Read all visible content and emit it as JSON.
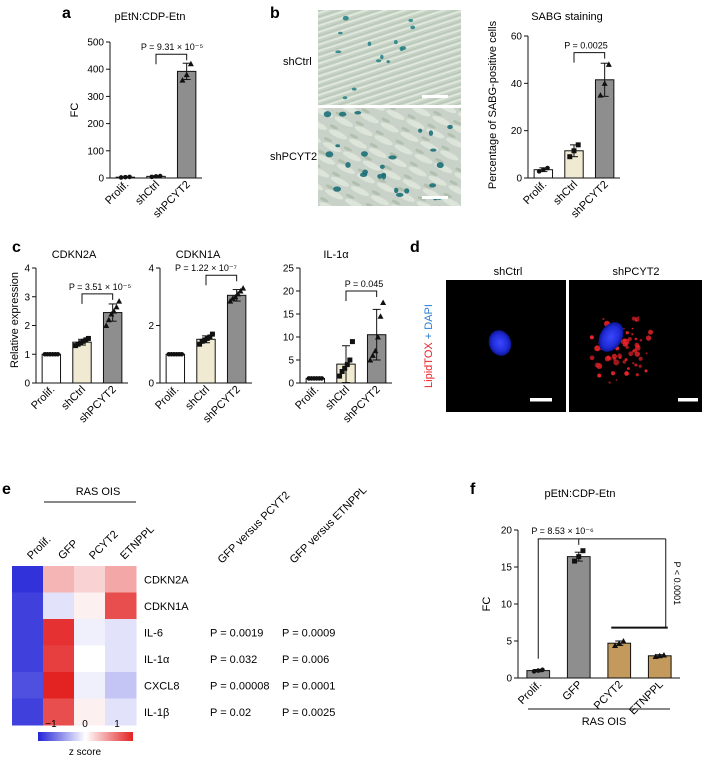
{
  "panels": {
    "a": {
      "letter": "a",
      "chart_data": {
        "type": "bar",
        "title": "pEtN:CDP-Etn",
        "ylabel": "FC",
        "categories": [
          "Prolif.",
          "shCtrl",
          "shPCYT2"
        ],
        "values": [
          3,
          6,
          392
        ],
        "errors": [
          1,
          2,
          30
        ],
        "points": [
          [
            2,
            3,
            4
          ],
          [
            4,
            6,
            7
          ],
          [
            360,
            380,
            420
          ]
        ],
        "ylim": [
          0,
          500
        ],
        "yticks": [
          0,
          100,
          200,
          300,
          400,
          500
        ],
        "bar_colors": [
          "#ffffff",
          "#f1ead2",
          "#8e8e8e"
        ],
        "annotations": [
          {
            "text": "P = 9.31 × 10⁻⁵",
            "from": 1,
            "to": 2
          }
        ]
      }
    },
    "b": {
      "letter": "b",
      "image_labels": [
        "shCtrl",
        "shPCYT2"
      ],
      "chart_data": {
        "type": "bar",
        "title": "SABG staining",
        "ylabel": "Percentage of SABG-positive cells",
        "categories": [
          "Prolif.",
          "shCtrl",
          "shPCYT2"
        ],
        "values": [
          3.5,
          11.5,
          41.5
        ],
        "errors": [
          0.8,
          2.5,
          7
        ],
        "points": [
          [
            2.8,
            3.5,
            4.2
          ],
          [
            9,
            11.5,
            14
          ],
          [
            35,
            40,
            48
          ]
        ],
        "ylim": [
          0,
          60
        ],
        "yticks": [
          0,
          20,
          40,
          60
        ],
        "bar_colors": [
          "#ffffff",
          "#f1ead2",
          "#8e8e8e"
        ],
        "annotations": [
          {
            "text": "P = 0.0025",
            "from": 1,
            "to": 2
          }
        ]
      }
    },
    "c": {
      "letter": "c",
      "ylabel": "Relative expression",
      "chart_data": [
        {
          "type": "bar",
          "title": "CDKN2A",
          "categories": [
            "Prolif.",
            "shCtrl",
            "shPCYT2"
          ],
          "values": [
            1,
            1.42,
            2.45
          ],
          "errors": [
            0,
            0.1,
            0.3
          ],
          "points": [
            [
              1,
              1,
              1,
              1,
              1,
              1
            ],
            [
              1.3,
              1.35,
              1.4,
              1.45,
              1.5,
              1.55
            ],
            [
              2.0,
              2.2,
              2.4,
              2.5,
              2.65,
              2.85
            ]
          ],
          "ylim": [
            0,
            4
          ],
          "yticks": [
            0,
            1,
            2,
            3,
            4
          ],
          "bar_colors": [
            "#ffffff",
            "#f1ead2",
            "#8e8e8e"
          ],
          "annotations": [
            {
              "text": "P = 3.51 × 10⁻⁵",
              "from": 1,
              "to": 2
            }
          ]
        },
        {
          "type": "bar",
          "title": "CDKN1A",
          "categories": [
            "Prolif.",
            "shCtrl",
            "shPCYT2"
          ],
          "values": [
            1,
            1.52,
            3.05
          ],
          "errors": [
            0,
            0.12,
            0.2
          ],
          "points": [
            [
              1,
              1,
              1,
              1,
              1,
              1
            ],
            [
              1.35,
              1.45,
              1.5,
              1.55,
              1.6,
              1.7
            ],
            [
              2.85,
              2.95,
              3.0,
              3.1,
              3.2,
              3.3
            ]
          ],
          "ylim": [
            0,
            4
          ],
          "yticks": [
            0,
            2,
            4
          ],
          "bar_colors": [
            "#ffffff",
            "#f1ead2",
            "#8e8e8e"
          ],
          "annotations": [
            {
              "text": "P = 1.22 × 10⁻⁷",
              "from": 1,
              "to": 2
            }
          ]
        },
        {
          "type": "bar",
          "title": "IL-1α",
          "categories": [
            "Prolif.",
            "shCtrl",
            "shPCYT2"
          ],
          "values": [
            1,
            4.1,
            10.5
          ],
          "errors": [
            0,
            4,
            5.5
          ],
          "points": [
            [
              1,
              1,
              1,
              1,
              1,
              1
            ],
            [
              1.5,
              2.5,
              3.2,
              4.0,
              5.0,
              9.0
            ],
            [
              5.0,
              6.0,
              7.0,
              10.0,
              14.5,
              17.5
            ]
          ],
          "ylim": [
            0,
            25
          ],
          "yticks": [
            0,
            5,
            10,
            15,
            20,
            25
          ],
          "bar_colors": [
            "#ffffff",
            "#f1ead2",
            "#8e8e8e"
          ],
          "annotations": [
            {
              "text": "P = 0.045",
              "from": 1,
              "to": 2
            }
          ]
        }
      ]
    },
    "d": {
      "letter": "d",
      "image_labels": [
        "shCtrl",
        "shPCYT2"
      ],
      "stain_label_red": "LipidTOX",
      "stain_label_plus": " + ",
      "stain_label_blue": "DAPI"
    },
    "e": {
      "letter": "e",
      "group_label": "RAS OIS",
      "chart_data": {
        "type": "heatmap",
        "columns": [
          "Prolif.",
          "GFP",
          "PCYT2",
          "ETNPPL"
        ],
        "rows": [
          "CDKN2A",
          "CDKN1A",
          "IL-6",
          "IL-1α",
          "CXCL8",
          "IL-1β"
        ],
        "values": [
          [
            -1.4,
            0.5,
            0.3,
            0.6
          ],
          [
            -1.3,
            -0.2,
            0.1,
            1.2
          ],
          [
            -1.3,
            1.4,
            -0.1,
            -0.2
          ],
          [
            -1.3,
            1.3,
            0.0,
            -0.2
          ],
          [
            -1.2,
            1.5,
            -0.1,
            -0.4
          ],
          [
            -1.3,
            1.2,
            0.1,
            -0.2
          ]
        ],
        "colorbar": {
          "label": "z score",
          "ticks": [
            "−1",
            "0",
            "1"
          ],
          "min": -1.5,
          "max": 1.5
        }
      },
      "table": {
        "headers": [
          "GFP versus PCYT2",
          "GFP versus ETNPPL"
        ],
        "rows": [
          [
            "P = 0.0019",
            "P = 0.0009"
          ],
          [
            "P = 0.032",
            "P = 0.006"
          ],
          [
            "P = 0.00008",
            "P = 0.0001"
          ],
          [
            "P = 0.02",
            "P = 0.0025"
          ]
        ]
      }
    },
    "f": {
      "letter": "f",
      "group_label": "RAS OIS",
      "chart_data": {
        "type": "bar",
        "title": "pEtN:CDP-Etn",
        "ylabel": "FC",
        "categories": [
          "Prolif.",
          "GFP",
          "PCYT2",
          "ETNPPL"
        ],
        "values": [
          1.0,
          16.4,
          4.7,
          3.0
        ],
        "errors": [
          0.15,
          0.6,
          0.3,
          0.15
        ],
        "points": [
          [
            0.9,
            1.0,
            1.1
          ],
          [
            15.8,
            16.4,
            17.2
          ],
          [
            4.4,
            4.7,
            5.0
          ],
          [
            2.9,
            3.0,
            3.1
          ]
        ],
        "ylim": [
          0,
          20
        ],
        "yticks": [
          0,
          5,
          10,
          15,
          20
        ],
        "bar_colors": [
          "#8e8e8e",
          "#8e8e8e",
          "#c39a5b",
          "#c39a5b"
        ],
        "annotations": [
          {
            "text": "P = 8.53 × 10⁻⁶"
          },
          {
            "text": "P < 0.0001"
          }
        ]
      }
    }
  },
  "colors": {
    "bar_stroke": "#111111",
    "heat_low": "#2323d8",
    "heat_mid": "#ffffff",
    "heat_high": "#e32222",
    "lipid_red": "#e8222a",
    "dapi_blue": "#2a7fd4"
  }
}
